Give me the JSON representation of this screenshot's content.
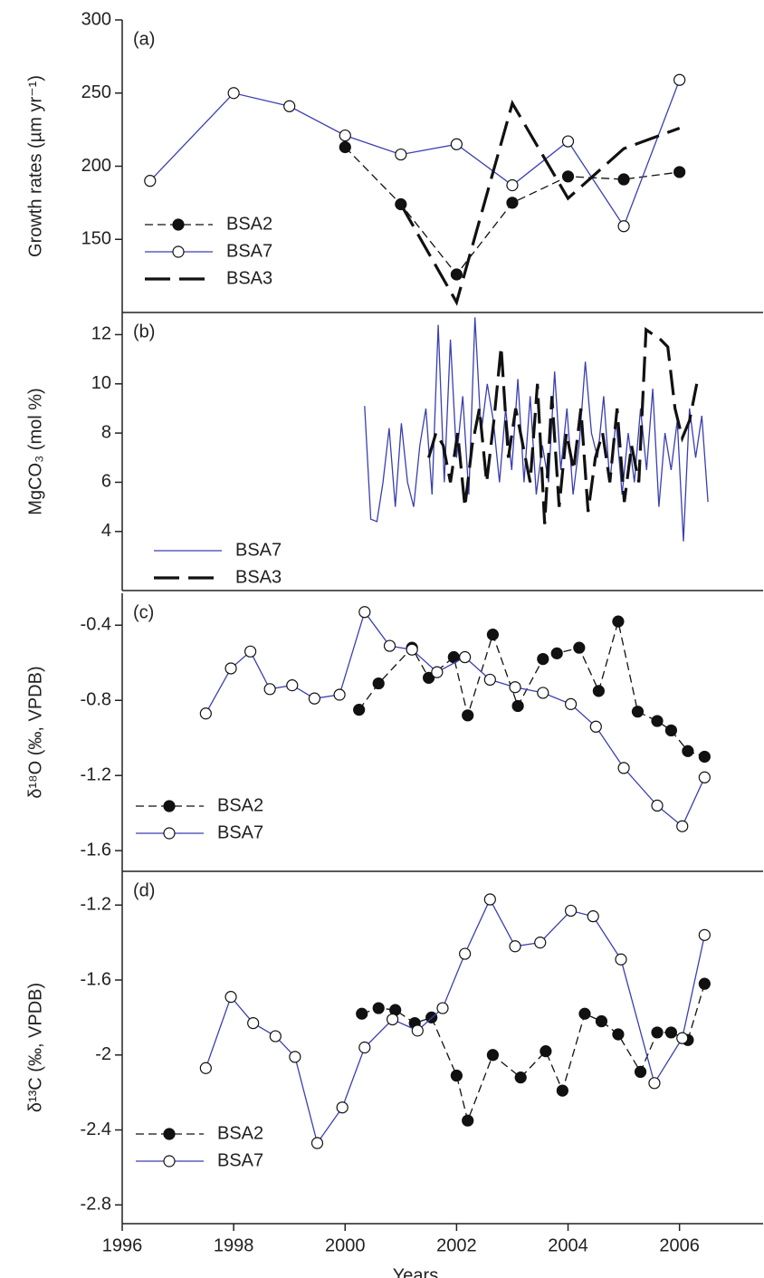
{
  "chart_data": [
    {
      "type": "line",
      "panel_label": "(a)",
      "ylabel": "Growth rates (µm yr⁻¹)",
      "xlim": [
        1996,
        2007.5
      ],
      "ylim": [
        100,
        300
      ],
      "yticks": [
        150,
        200,
        250,
        300
      ],
      "legend": "lower left",
      "series": [
        {
          "name": "BSA2",
          "color": "#111111",
          "line_style": "dashed",
          "marker": "filled",
          "x": [
            2000,
            2001,
            2002,
            2003,
            2004,
            2005,
            2006
          ],
          "values": [
            213,
            174,
            126,
            175,
            193,
            191,
            196
          ]
        },
        {
          "name": "BSA7",
          "color": "#3a3fb0",
          "line_style": "solid",
          "marker": "open",
          "x": [
            1996.5,
            1998,
            1999,
            2000,
            2001,
            2002,
            2003,
            2004,
            2005,
            2006
          ],
          "values": [
            190,
            250,
            241,
            221,
            208,
            215,
            187,
            217,
            159,
            259
          ]
        },
        {
          "name": "BSA3",
          "color": "#111111",
          "line_style": "long-dash",
          "marker": "none",
          "x": [
            2001,
            2002,
            2003,
            2004,
            2005,
            2006
          ],
          "values": [
            174,
            107,
            243,
            178,
            212,
            226
          ]
        }
      ]
    },
    {
      "type": "line",
      "panel_label": "(b)",
      "ylabel": "MgCO₃ (mol %)",
      "xlim": [
        1996,
        2007.5
      ],
      "ylim": [
        1.6,
        12.9
      ],
      "yticks": [
        4,
        6,
        8,
        10,
        12
      ],
      "legend": "lower left",
      "series": [
        {
          "name": "BSA7",
          "color": "#3a3fb0",
          "line_style": "solid",
          "marker": "none",
          "x": [
            2000.35,
            2000.46,
            2000.57,
            2000.68,
            2000.79,
            2000.9,
            2001.01,
            2001.12,
            2001.23,
            2001.34,
            2001.45,
            2001.56,
            2001.67,
            2001.78,
            2001.89,
            2002.0,
            2002.11,
            2002.22,
            2002.33,
            2002.44,
            2002.55,
            2002.66,
            2002.77,
            2002.88,
            2002.99,
            2003.1,
            2003.21,
            2003.32,
            2003.43,
            2003.54,
            2003.65,
            2003.76,
            2003.87,
            2003.98,
            2004.09,
            2004.2,
            2004.31,
            2004.42,
            2004.53,
            2004.64,
            2004.75,
            2004.86,
            2004.97,
            2005.08,
            2005.19,
            2005.3,
            2005.41,
            2005.52,
            2005.63,
            2005.74,
            2005.85,
            2005.96,
            2006.07,
            2006.18,
            2006.29,
            2006.4,
            2006.51
          ],
          "values": [
            9.1,
            4.5,
            4.4,
            6.0,
            8.2,
            5.0,
            8.4,
            6.0,
            5.0,
            7.5,
            9.0,
            5.5,
            12.4,
            6.0,
            11.8,
            7.0,
            9.5,
            5.5,
            12.7,
            8.0,
            10.0,
            8.5,
            6.0,
            9.0,
            6.5,
            10.2,
            6.0,
            9.5,
            5.5,
            7.5,
            6.0,
            10.5,
            6.5,
            9.0,
            5.5,
            7.5,
            10.9,
            8.0,
            7.0,
            9.5,
            6.0,
            8.5,
            5.5,
            8.0,
            6.0,
            9.0,
            6.5,
            9.8,
            5.0,
            8.0,
            6.5,
            8.5,
            3.6,
            9.0,
            7.0,
            8.7,
            5.2
          ]
        },
        {
          "name": "BSA3",
          "color": "#111111",
          "line_style": "long-dash",
          "marker": "none",
          "x": [
            2001.5,
            2001.63,
            2001.76,
            2001.89,
            2002.02,
            2002.15,
            2002.28,
            2002.41,
            2002.54,
            2002.67,
            2002.8,
            2002.93,
            2003.06,
            2003.19,
            2003.32,
            2003.45,
            2003.58,
            2003.71,
            2003.84,
            2003.97,
            2004.1,
            2004.23,
            2004.36,
            2004.49,
            2004.62,
            2004.75,
            2004.88,
            2005.01,
            2005.14,
            2005.27,
            2005.4,
            2005.53,
            2005.66,
            2005.79,
            2005.92,
            2006.05,
            2006.18,
            2006.31
          ],
          "values": [
            7.0,
            8.0,
            7.5,
            6.0,
            8.0,
            5.0,
            7.5,
            9.0,
            6.0,
            8.5,
            11.5,
            7.0,
            9.0,
            7.5,
            6.0,
            10.0,
            4.3,
            9.5,
            5.0,
            8.0,
            6.5,
            9.0,
            4.8,
            7.0,
            8.0,
            6.0,
            9.0,
            5.2,
            7.5,
            6.0,
            12.2,
            12.0,
            11.8,
            11.5,
            9.0,
            7.8,
            8.5,
            10.0
          ]
        }
      ]
    },
    {
      "type": "line",
      "panel_label": "(c)",
      "ylabel": "δ¹⁸O (‰, VPDB)",
      "xlim": [
        1996,
        2007.5
      ],
      "ylim": [
        -1.71,
        -0.23
      ],
      "yticks": [
        -0.4,
        -0.8,
        -1.2,
        -1.6
      ],
      "legend": "lower left",
      "series": [
        {
          "name": "BSA2",
          "color": "#111111",
          "line_style": "dashed",
          "marker": "filled",
          "x": [
            2000.25,
            2000.6,
            2001.2,
            2001.5,
            2001.95,
            2002.2,
            2002.65,
            2003.1,
            2003.55,
            2003.8,
            2004.2,
            2004.55,
            2004.9,
            2005.25,
            2005.6,
            2005.85,
            2006.15,
            2006.45
          ],
          "values": [
            -0.85,
            -0.71,
            -0.52,
            -0.68,
            -0.57,
            -0.88,
            -0.45,
            -0.83,
            -0.58,
            -0.55,
            -0.52,
            -0.75,
            -0.38,
            -0.86,
            -0.91,
            -0.96,
            -1.07,
            -1.1
          ]
        },
        {
          "name": "BSA7",
          "color": "#3a3fb0",
          "line_style": "solid",
          "marker": "open",
          "x": [
            1997.5,
            1997.95,
            1998.3,
            1998.65,
            1999.05,
            1999.45,
            1999.9,
            2000.35,
            2000.8,
            2001.2,
            2001.65,
            2002.15,
            2002.6,
            2003.05,
            2003.55,
            2004.05,
            2004.5,
            2005.0,
            2005.6,
            2006.05,
            2006.45
          ],
          "values": [
            -0.87,
            -0.63,
            -0.54,
            -0.74,
            -0.72,
            -0.79,
            -0.77,
            -0.33,
            -0.51,
            -0.53,
            -0.65,
            -0.57,
            -0.69,
            -0.73,
            -0.76,
            -0.82,
            -0.94,
            -1.16,
            -1.36,
            -1.47,
            -1.21
          ]
        }
      ]
    },
    {
      "type": "line",
      "panel_label": "(d)",
      "ylabel": "δ¹³C (‰, VPDB)",
      "xlabel": "Years",
      "xlim": [
        1996,
        2007.5
      ],
      "xticks": [
        1996,
        1998,
        2000,
        2002,
        2004,
        2006
      ],
      "ylim": [
        -2.9,
        -1.02
      ],
      "yticks": [
        -1.2,
        -1.6,
        -2.0,
        -2.4,
        -2.8
      ],
      "legend": "lower left",
      "series": [
        {
          "name": "BSA2",
          "color": "#111111",
          "line_style": "dashed",
          "marker": "filled",
          "x": [
            2000.3,
            2000.6,
            2000.9,
            2001.25,
            2001.55,
            2002.0,
            2002.2,
            2002.65,
            2003.15,
            2003.6,
            2003.9,
            2004.3,
            2004.6,
            2004.9,
            2005.3,
            2005.6,
            2005.85,
            2006.15,
            2006.45
          ],
          "values": [
            -1.78,
            -1.75,
            -1.76,
            -1.83,
            -1.8,
            -2.11,
            -2.35,
            -2.0,
            -2.12,
            -1.98,
            -2.19,
            -1.78,
            -1.82,
            -1.89,
            -2.09,
            -1.88,
            -1.88,
            -1.92,
            -1.62
          ]
        },
        {
          "name": "BSA7",
          "color": "#3a3fb0",
          "line_style": "solid",
          "marker": "open",
          "x": [
            1997.5,
            1997.95,
            1998.35,
            1998.75,
            1999.1,
            1999.5,
            1999.95,
            2000.35,
            2000.85,
            2001.3,
            2001.75,
            2002.15,
            2002.6,
            2003.05,
            2003.5,
            2004.05,
            2004.45,
            2004.95,
            2005.55,
            2006.05,
            2006.45
          ],
          "values": [
            -2.07,
            -1.69,
            -1.83,
            -1.9,
            -2.01,
            -2.47,
            -2.28,
            -1.96,
            -1.81,
            -1.87,
            -1.75,
            -1.46,
            -1.17,
            -1.42,
            -1.4,
            -1.23,
            -1.26,
            -1.49,
            -2.15,
            -1.91,
            -1.36
          ]
        }
      ]
    }
  ]
}
